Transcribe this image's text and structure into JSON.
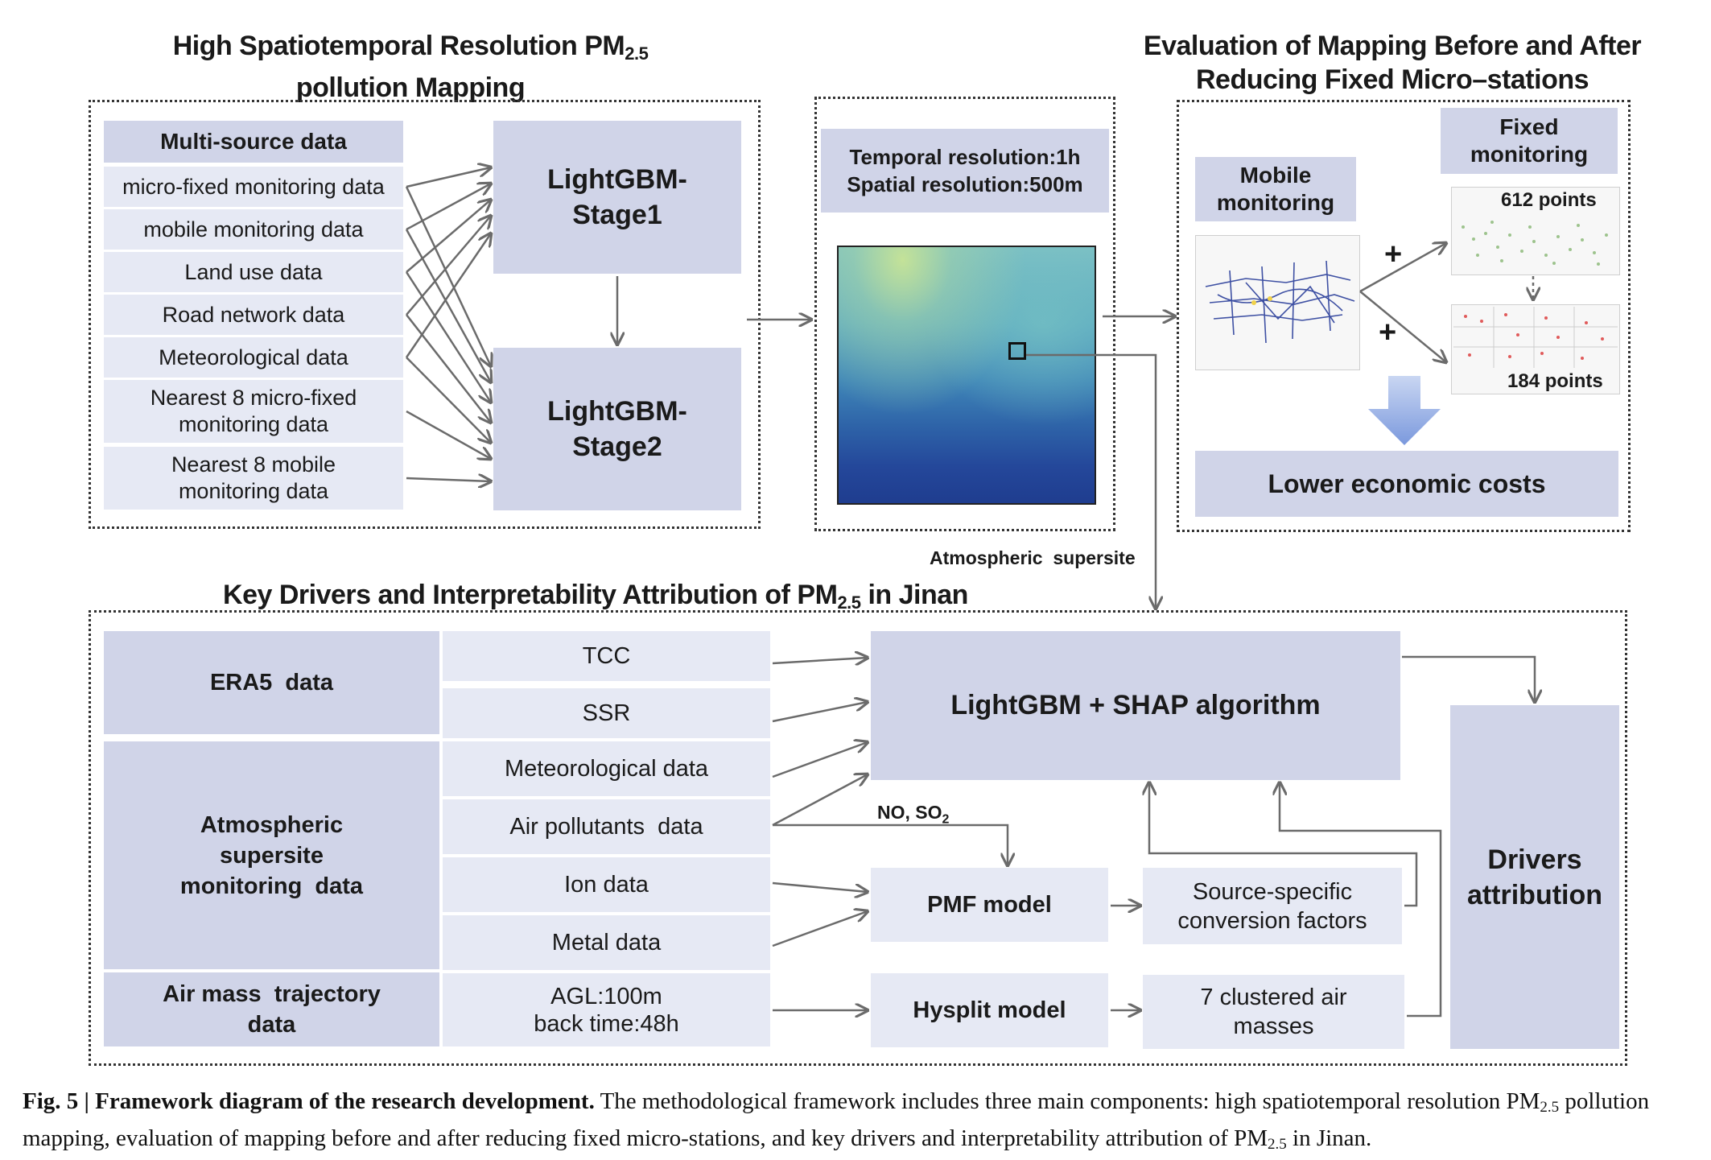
{
  "titles": {
    "mapping_line1": "High Spatiotemporal Resolution PM",
    "mapping_line1_sub": "2.5",
    "mapping_line2": "pollution Mapping",
    "evaluation_line1": "Evaluation of Mapping Before and After",
    "evaluation_line2": "Reducing Fixed Micro–stations",
    "drivers_prefix": "Key Drivers and Interpretability Attribution of PM",
    "drivers_sub": "2.5",
    "drivers_suffix": " in Jinan"
  },
  "multisource": {
    "header": "Multi-source data",
    "items": [
      "micro-fixed monitoring data",
      "mobile monitoring data",
      "Land use data",
      "Road network data",
      "Meteorological data",
      "Nearest 8 micro-fixed monitoring data",
      "Nearest 8 mobile monitoring data"
    ]
  },
  "stages": {
    "stage1": "LightGBM-Stage1",
    "stage2": "LightGBM-Stage2"
  },
  "resolution": {
    "temporal": "Temporal resolution:1h",
    "spatial": "Spatial resolution:500m"
  },
  "supersite_label": "Atmospheric  supersite",
  "evaluation": {
    "mobile": "Mobile monitoring",
    "fixed": "Fixed monitoring",
    "points_612": "612 points",
    "points_184": "184 points",
    "plus": "+",
    "costs": "Lower economic costs"
  },
  "drivers": {
    "era5": "ERA5  data",
    "supersite": "Atmospheric supersite monitoring  data",
    "trajectory": "Air mass  trajectory data",
    "tcc": "TCC",
    "ssr": "SSR",
    "meteo": "Meteorological data",
    "air_pollutants": "Air pollutants  data",
    "ion": "Ion data",
    "metal": "Metal data",
    "agl": "AGL:100m",
    "back_time": "back time:48h",
    "shap": "LightGBM + SHAP algorithm",
    "no_so2": "NO, SO",
    "no_so2_sub": "2",
    "pmf": "PMF model",
    "source_factors": "Source-specific conversion factors",
    "hysplit": "Hysplit model",
    "clustered": "7 clustered air masses",
    "attribution": "Drivers attribution"
  },
  "caption": {
    "label": "Fig. 5 | Framework diagram of the research development.",
    "text1": " The methodological framework includes three main components: high spatiotemporal resolution PM",
    "sub1": "2.5",
    "text2": " pollution mapping, evaluation of mapping before and after reducing fixed micro-stations, and key drivers and interpretability attribution of PM",
    "sub2": "2.5",
    "text3": " in Jinan."
  },
  "colors": {
    "box_dark": "#d0d4e8",
    "box_light": "#e6e9f4",
    "arrow": "#6b6b6b",
    "mobile_route": "#2b3f9a",
    "fixed_points": "#7fb26a",
    "reduced_points": "#e05a5a"
  }
}
